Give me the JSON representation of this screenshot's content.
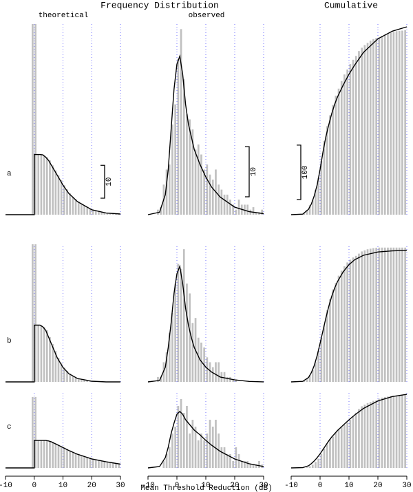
{
  "title": "Frequency Distribution",
  "columns": [
    "theoretical",
    "observed",
    "Cumulative"
  ],
  "x_label": "Mean Threshold Reduction (dB)",
  "chart_data": [
    {
      "type": "histogram",
      "row_label": "a",
      "bar_color": "#c0c0c0",
      "line_color": "#000000",
      "grid_color": "#7070ff",
      "grid": true,
      "xlim": [
        -10,
        30
      ],
      "xticks": [
        -10,
        0,
        10,
        20,
        30
      ],
      "ylim": [
        0,
        58
      ],
      "scale_bar": 10,
      "bins": [
        -1,
        0,
        1,
        2,
        3,
        4,
        5,
        6,
        7,
        8,
        9,
        10,
        11,
        12,
        13,
        14,
        15,
        16,
        17,
        18,
        19,
        20,
        21,
        22,
        23,
        24,
        25,
        26,
        27,
        28,
        29,
        30
      ],
      "counts": [
        58,
        58,
        18.3,
        18.3,
        18,
        17.5,
        16.5,
        15,
        13.5,
        12,
        10.5,
        9,
        7.7,
        6.5,
        5.5,
        4.7,
        4,
        3.4,
        2.8,
        2.3,
        1.9,
        1.5,
        1.2,
        1,
        0.8,
        0.6,
        0.5,
        0.4,
        0.3,
        0.3,
        0.2
      ],
      "curve": {
        "x": [
          -10,
          0,
          0,
          1,
          2,
          3,
          4,
          5,
          6,
          7,
          8,
          10,
          12,
          15,
          20,
          25,
          30
        ],
        "y": [
          0,
          0,
          18.3,
          18.3,
          18.3,
          18.2,
          17.5,
          16.5,
          15,
          13.5,
          12,
          9,
          6.5,
          4,
          1.5,
          0.5,
          0.2
        ]
      }
    },
    {
      "type": "histogram",
      "bar_color": "#c0c0c0",
      "line_color": "#000000",
      "grid_color": "#7070ff",
      "grid": true,
      "xlim": [
        -10,
        30
      ],
      "xticks": [
        -10,
        0,
        10,
        20,
        30
      ],
      "ylim": [
        0,
        38
      ],
      "scale_bar": 10,
      "bins": [
        -7,
        -6,
        -5,
        -4,
        -3,
        -2,
        -1,
        0,
        1,
        2,
        3,
        4,
        5,
        6,
        7,
        8,
        9,
        10,
        11,
        12,
        13,
        14,
        15,
        16,
        17,
        18,
        19,
        20,
        21,
        22,
        23,
        24,
        25,
        26,
        27,
        28,
        29,
        30
      ],
      "counts": [
        1,
        1.5,
        6,
        9,
        10,
        18,
        22,
        31,
        37,
        27,
        20,
        19,
        17,
        13,
        14,
        12,
        9,
        10,
        8,
        7,
        9,
        6,
        5,
        4,
        4,
        3,
        2,
        1,
        3,
        2,
        2,
        2,
        1,
        1.5,
        0.5,
        0.5,
        1
      ],
      "curve": {
        "x": [
          -10,
          -6,
          -4,
          -3,
          -2,
          -1,
          0,
          1,
          2,
          3,
          4,
          5,
          6,
          8,
          10,
          12,
          15,
          20,
          25,
          30
        ],
        "y": [
          0,
          0.5,
          4,
          9,
          17,
          25,
          30,
          31.6,
          28,
          22,
          18,
          15.5,
          13,
          10,
          7.5,
          5.5,
          3.5,
          1.5,
          0.6,
          0.2
        ]
      }
    },
    {
      "type": "histogram",
      "bar_color": "#c0c0c0",
      "line_color": "#000000",
      "grid_color": "#7070ff",
      "grid": true,
      "xlim": [
        -10,
        30
      ],
      "xticks": [
        -10,
        0,
        10,
        20,
        30
      ],
      "ylim": [
        0,
        350
      ],
      "scale_bar": 100,
      "bins": [
        -7,
        -6,
        -5,
        -4,
        -3,
        -2,
        -1,
        0,
        1,
        2,
        3,
        4,
        5,
        6,
        7,
        8,
        9,
        10,
        11,
        12,
        13,
        14,
        15,
        16,
        17,
        18,
        19,
        20,
        21,
        22,
        23,
        24,
        25,
        26,
        27,
        28,
        29,
        30
      ],
      "counts": [
        1,
        2.5,
        8.5,
        17.5,
        27.5,
        45.5,
        67.5,
        98.5,
        135.5,
        162.5,
        182.5,
        201.5,
        218.5,
        231.5,
        245.5,
        257.5,
        266.5,
        276.5,
        284.5,
        291.5,
        300.5,
        306.5,
        311.5,
        315.5,
        319.5,
        322.5,
        324.5,
        325.5,
        328.5,
        330.5,
        332.5,
        334.5,
        335.5,
        337,
        337.5,
        338,
        339
      ],
      "curve": {
        "x": [
          -10,
          -6,
          -4,
          -3,
          -2,
          -1,
          0,
          1,
          2,
          3,
          4,
          5,
          6,
          8,
          10,
          12,
          15,
          20,
          25,
          30
        ],
        "y": [
          0,
          1,
          10,
          20,
          35,
          55,
          83,
          115,
          143,
          165,
          185,
          202,
          216,
          238,
          258,
          275,
          298,
          323,
          337,
          345
        ]
      }
    },
    {
      "type": "histogram",
      "row_label": "b",
      "bar_color": "#c0c0c0",
      "line_color": "#000000",
      "grid_color": "#7070ff",
      "grid": true,
      "xlim": [
        -10,
        30
      ],
      "xticks": [
        -10,
        0,
        10,
        20,
        30
      ],
      "ylim": [
        0,
        40
      ],
      "bins": [
        -1,
        0,
        1,
        2,
        3,
        4,
        5,
        6,
        7,
        8,
        9,
        10,
        11,
        12,
        13,
        14,
        15,
        16,
        17,
        18,
        19,
        20,
        21,
        22,
        23,
        24,
        25,
        26,
        27,
        28,
        29,
        30
      ],
      "counts": [
        40,
        40,
        16.5,
        16.5,
        16,
        15,
        13,
        11,
        9,
        7,
        5.5,
        4.2,
        3.2,
        2.4,
        1.8,
        1.3,
        1,
        0.7,
        0.5,
        0.4,
        0.3,
        0.2,
        0.1,
        0.1,
        0.1,
        0.1,
        0.1,
        0.1,
        0.1,
        0.1,
        0.1
      ],
      "curve": {
        "x": [
          -10,
          0,
          0,
          1,
          2,
          3,
          4,
          5,
          6,
          7,
          8,
          10,
          12,
          15,
          20,
          25,
          30
        ],
        "y": [
          0,
          0,
          16.5,
          16.5,
          16.5,
          16,
          15,
          13,
          11,
          9,
          7,
          4.2,
          2.4,
          1,
          0.2,
          0,
          0
        ]
      }
    },
    {
      "type": "histogram",
      "bar_color": "#c0c0c0",
      "line_color": "#000000",
      "grid_color": "#7070ff",
      "grid": true,
      "xlim": [
        -10,
        30
      ],
      "xticks": [
        -10,
        0,
        10,
        20,
        30
      ],
      "ylim": [
        0,
        28
      ],
      "bins": [
        -7,
        -6,
        -5,
        -4,
        -3,
        -2,
        -1,
        0,
        1,
        2,
        3,
        4,
        5,
        6,
        7,
        8,
        9,
        10,
        11,
        12,
        13,
        14,
        15,
        16,
        17,
        18,
        19,
        20,
        21,
        22,
        23,
        24,
        25,
        26,
        27,
        28,
        29,
        30
      ],
      "counts": [
        1,
        1,
        4,
        6,
        10,
        14,
        20,
        24,
        23,
        27,
        20,
        18,
        12,
        13,
        9,
        8,
        7,
        5,
        4,
        3,
        4,
        4,
        2,
        2,
        1,
        1,
        0.5,
        0.5,
        0,
        0,
        0,
        0,
        0,
        0,
        0,
        0,
        0
      ],
      "curve": {
        "x": [
          -10,
          -6,
          -4,
          -3,
          -2,
          -1,
          0,
          1,
          2,
          3,
          4,
          5,
          6,
          8,
          10,
          12,
          15,
          20,
          25,
          30
        ],
        "y": [
          0,
          0.3,
          3,
          7,
          12,
          18,
          22,
          23.5,
          20,
          15,
          11.5,
          9,
          7,
          4.5,
          3,
          2,
          1,
          0.4,
          0.1,
          0
        ]
      }
    },
    {
      "type": "histogram",
      "bar_color": "#c0c0c0",
      "line_color": "#000000",
      "grid_color": "#7070ff",
      "grid": true,
      "xlim": [
        -10,
        30
      ],
      "xticks": [
        -10,
        0,
        10,
        20,
        30
      ],
      "ylim": [
        0,
        250
      ],
      "bins": [
        -7,
        -6,
        -5,
        -4,
        -3,
        -2,
        -1,
        0,
        1,
        2,
        3,
        4,
        5,
        6,
        7,
        8,
        9,
        10,
        11,
        12,
        13,
        14,
        15,
        16,
        17,
        18,
        19,
        20,
        21,
        22,
        23,
        24,
        25,
        26,
        27,
        28,
        29,
        30
      ],
      "counts": [
        1,
        2,
        6,
        12,
        22,
        36,
        56,
        80,
        103,
        130,
        150,
        168,
        180,
        193,
        202,
        210,
        217,
        222,
        226,
        229,
        233,
        237,
        239,
        241,
        242,
        243,
        243.5,
        244,
        244,
        244,
        244,
        244,
        244,
        244,
        244,
        244,
        244
      ],
      "curve": {
        "x": [
          -10,
          -6,
          -4,
          -3,
          -2,
          -1,
          0,
          1,
          2,
          3,
          4,
          5,
          6,
          8,
          10,
          12,
          15,
          20,
          25,
          30
        ],
        "y": [
          0,
          1,
          8,
          17,
          30,
          48,
          70,
          93,
          116,
          137,
          155,
          170,
          182,
          200,
          213,
          222,
          230,
          236,
          238,
          239
        ]
      }
    },
    {
      "type": "histogram",
      "row_label": "c",
      "bar_color": "#c0c0c0",
      "line_color": "#000000",
      "grid_color": "#7070ff",
      "grid": true,
      "xlim": [
        -10,
        30
      ],
      "xticks": [
        -10,
        0,
        10,
        20,
        30
      ],
      "ylim": [
        0,
        16
      ],
      "bins": [
        -1,
        0,
        1,
        2,
        3,
        4,
        5,
        6,
        7,
        8,
        9,
        10,
        11,
        12,
        13,
        14,
        15,
        16,
        17,
        18,
        19,
        20,
        21,
        22,
        23,
        24,
        25,
        26,
        27,
        28,
        29,
        30
      ],
      "counts": [
        15,
        15,
        5.8,
        5.8,
        5.8,
        5.8,
        5.7,
        5.5,
        5.2,
        4.9,
        4.6,
        4.3,
        4,
        3.7,
        3.4,
        3.1,
        2.9,
        2.7,
        2.5,
        2.3,
        2.1,
        1.9,
        1.8,
        1.6,
        1.5,
        1.4,
        1.3,
        1.2,
        1.1,
        1,
        0.9
      ],
      "curve": {
        "x": [
          -10,
          0,
          0,
          1,
          2,
          3,
          4,
          5,
          6,
          7,
          8,
          10,
          12,
          15,
          20,
          25,
          30
        ],
        "y": [
          0,
          0,
          5.8,
          5.8,
          5.8,
          5.8,
          5.8,
          5.7,
          5.5,
          5.2,
          4.9,
          4.3,
          3.7,
          2.9,
          1.9,
          1.3,
          0.8
        ]
      }
    },
    {
      "type": "histogram",
      "bar_color": "#c0c0c0",
      "line_color": "#000000",
      "grid_color": "#7070ff",
      "grid": true,
      "xlim": [
        -10,
        30
      ],
      "xticks": [
        -10,
        0,
        10,
        20,
        30
      ],
      "ylim": [
        0,
        11
      ],
      "bins": [
        -7,
        -6,
        -5,
        -4,
        -3,
        -2,
        -1,
        0,
        1,
        2,
        3,
        4,
        5,
        6,
        7,
        8,
        9,
        10,
        11,
        12,
        13,
        14,
        15,
        16,
        17,
        18,
        19,
        20,
        21,
        22,
        23,
        24,
        25,
        26,
        27,
        28,
        29,
        30
      ],
      "counts": [
        0,
        0,
        1,
        2,
        3,
        5,
        6,
        9,
        10,
        8,
        9,
        5,
        7,
        6,
        4,
        5,
        4,
        5,
        7,
        6,
        7,
        5,
        3,
        3,
        2,
        2,
        1,
        3,
        2,
        1,
        1,
        1,
        0.5,
        0.5,
        0.5,
        1,
        0.5
      ],
      "curve": {
        "x": [
          -10,
          -6,
          -4,
          -3,
          -2,
          -1,
          0,
          1,
          2,
          3,
          4,
          5,
          6,
          8,
          10,
          12,
          15,
          20,
          25,
          30
        ],
        "y": [
          0,
          0.2,
          1.5,
          3,
          5,
          6.5,
          7.8,
          8.2,
          7.8,
          7,
          6.5,
          6,
          5.5,
          4.8,
          4,
          3.3,
          2.4,
          1.3,
          0.6,
          0.2
        ]
      }
    },
    {
      "type": "histogram",
      "bar_color": "#c0c0c0",
      "line_color": "#000000",
      "grid_color": "#7070ff",
      "grid": true,
      "xlim": [
        -10,
        30
      ],
      "xticks": [
        -10,
        0,
        10,
        20,
        30
      ],
      "ylim": [
        0,
        140
      ],
      "bins": [
        -7,
        -6,
        -5,
        -4,
        -3,
        -2,
        -1,
        0,
        1,
        2,
        3,
        4,
        5,
        6,
        7,
        8,
        9,
        10,
        11,
        12,
        13,
        14,
        15,
        16,
        17,
        18,
        19,
        20,
        21,
        22,
        23,
        24,
        25,
        26,
        27,
        28,
        29,
        30
      ],
      "counts": [
        0,
        0,
        1,
        3,
        6,
        11,
        17,
        26,
        36,
        44,
        53,
        58,
        65,
        71,
        75,
        80,
        84,
        89,
        96,
        102,
        109,
        114,
        117,
        120,
        122,
        124,
        125,
        128,
        130,
        131,
        132,
        133,
        133.5,
        134,
        134.5,
        135.5,
        136
      ],
      "curve": {
        "x": [
          -10,
          -6,
          -4,
          -3,
          -2,
          -1,
          0,
          1,
          2,
          3,
          4,
          5,
          6,
          8,
          10,
          12,
          15,
          20,
          25,
          30
        ],
        "y": [
          0,
          0.5,
          4,
          8,
          13,
          19,
          26,
          34,
          42,
          50,
          57,
          63,
          69,
          79,
          89,
          98,
          110,
          124,
          132,
          136
        ]
      }
    }
  ]
}
